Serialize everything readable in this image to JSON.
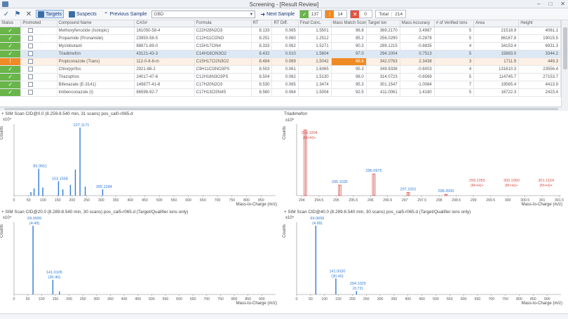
{
  "window": {
    "title": "Screening - [Result Review]"
  },
  "toolbar": {
    "targets_label": "Targets",
    "suspects_label": "Suspects",
    "prev_label": "Previous Sample",
    "sample_value": "GBD",
    "next_label": "Next Sample",
    "count_ok": "137",
    "count_warn": "14",
    "count_err": "0",
    "total_label": "Total",
    "total_value": "214"
  },
  "table": {
    "headers": [
      "Status",
      "Promoted",
      "Compound Name",
      "CAS#",
      "Formula",
      "RT",
      "RT Diff.",
      "Final Conc.",
      "Mass Match Score",
      "Target Ion",
      "Mass Accuracy",
      "# of Verified Ions",
      "Area",
      "Height"
    ],
    "rows": [
      {
        "status": "ok",
        "name": "Methoxyfenozide (Isotopic)",
        "cas": "161050-58-4",
        "formula": "C22H28N2O3",
        "rt": "8.133",
        "rtd": "0.065",
        "conc": "1.5501",
        "mms": "96.8",
        "ion": "369.2170",
        "acc": "3.4987",
        "vi": "5",
        "area": "21518.9",
        "height": "4061.1"
      },
      {
        "status": "ok",
        "name": "Propamide (Pronamide)",
        "cas": "23950-58-5",
        "formula": "C12H11Cl2NO",
        "rt": "8.251",
        "rtd": "0.060",
        "conc": "1.2512",
        "mms": "85.2",
        "ion": "256.0290",
        "acc": "-0.2878",
        "vi": "5",
        "area": "86167.8",
        "height": "19015.5"
      },
      {
        "status": "ok",
        "name": "Myclobutanil",
        "cas": "88671-89-0",
        "formula": "C15H17ClN4",
        "rt": "8.333",
        "rtd": "0.062",
        "conc": "1.5271",
        "mms": "90.3",
        "ion": "289.1215",
        "acc": "-0.8835",
        "vi": "4",
        "area": "34153.4",
        "height": "6931.3"
      },
      {
        "status": "ok",
        "name": "Triadimefon",
        "cas": "43121-43-3",
        "formula": "C14H16ClN3O2",
        "rt": "8.432",
        "rtd": "0.010",
        "conc": "1.5604",
        "mms": "97.0",
        "ion": "294.1004",
        "acc": "0.7513",
        "vi": "5",
        "area": "15883.0",
        "height": "3344.2",
        "selected": true
      },
      {
        "status": "warn",
        "name": "Propiconazole (Trans)",
        "cas": "112-0-8-8-m",
        "formula": "C15H17Cl2N3O2",
        "rt": "8.484",
        "rtd": "0.069",
        "conc": "1.5042",
        "mms": "66.6",
        "ion": "342.0763",
        "acc": "2.3438",
        "vi": "3",
        "area": "1711.9",
        "height": "449.3",
        "highlight": true
      },
      {
        "status": "ok",
        "name": "Chlorpyrifos",
        "cas": "2921-88-2",
        "formula": "C9H11Cl3NO3PS",
        "rt": "8.503",
        "rtd": "0.061",
        "conc": "1.6065",
        "mms": "95.3",
        "ion": "349.9338",
        "acc": "-0.6003",
        "vi": "4",
        "area": "131610.3",
        "height": "23556.4"
      },
      {
        "status": "ok",
        "name": "Triazophos",
        "cas": "24017-47-8",
        "formula": "C12H16N3O3PS",
        "rt": "8.504",
        "rtd": "0.062",
        "conc": "1.5130",
        "mms": "98.0",
        "ion": "314.0723",
        "acc": "-0.6569",
        "vi": "5",
        "area": "114745.7",
        "height": "27153.7"
      },
      {
        "status": "ok",
        "name": "Bifenazate (E-3141)",
        "cas": "149877-41-8",
        "formula": "C17H20N2O3",
        "rt": "8.530",
        "rtd": "0.065",
        "conc": "1.3474",
        "mms": "95.3",
        "ion": "301.1547",
        "acc": "-1.0084",
        "vi": "7",
        "area": "19565.4",
        "height": "4413.9"
      },
      {
        "status": "ok",
        "name": "Imibenconazole (I)",
        "cas": "86598-92-7",
        "formula": "C17H13Cl3N4S",
        "rt": "8.560",
        "rtd": "0.064",
        "conc": "1.5004",
        "mms": "92.5",
        "ion": "411.0061",
        "acc": "1.4180",
        "vi": "5",
        "area": "16722.3",
        "height": "2423.4"
      }
    ]
  },
  "panels": {
    "tl": {
      "title": "+ SIM Scan CID@0.0 (8.259-8.540 min, 31 scans) pos_cal0-r065.d",
      "exp": "x10⁴",
      "counts": "Counts",
      "xaxis": "Mass-to-Charge (m/z)"
    },
    "tr": {
      "title": "Triadimefon",
      "exp": "x10⁰",
      "counts": "Counts",
      "xaxis": "Mass-to-Charge (m/z)"
    },
    "bl": {
      "title": "+ SIM Scan CID@20.0 (8.289-8.540 min, 30 scans) pos_cal5-r065.d (Target/Qualifier ions only)",
      "exp": "x10⁴",
      "counts": "Counts",
      "xaxis": "Mass-to-Charge (m/z)"
    },
    "br": {
      "title": "+ SIM Scan CID@40.0 (8.289-8.540 min, 30 scans) pos_cal5-r065.d (Target/Qualifier ions only)",
      "exp": "x10⁴",
      "counts": "Counts",
      "xaxis": "Mass-to-Charge (m/z)"
    }
  },
  "chart_data": [
    {
      "type": "bar",
      "title": "+ SIM Scan CID@0.0 (8.259-8.540 min, 31 scans) pos_cal0-r065.d",
      "xlabel": "Mass-to-Charge (m/z)",
      "ylabel": "Counts",
      "xlim": [
        0,
        900
      ],
      "x_ticks": [
        0,
        50,
        100,
        150,
        200,
        250,
        300,
        350,
        400,
        450,
        500,
        550,
        600,
        650,
        700,
        750,
        800,
        850
      ],
      "peaks": [
        {
          "x": 58,
          "y": 0.4
        },
        {
          "x": 69,
          "y": 0.8
        },
        {
          "x": 85,
          "y": 3.0,
          "label": "85.0651"
        },
        {
          "x": 99,
          "y": 0.9
        },
        {
          "x": 153,
          "y": 1.6,
          "label": "153.1558"
        },
        {
          "x": 168,
          "y": 0.7
        },
        {
          "x": 194,
          "y": 1.2
        },
        {
          "x": 211,
          "y": 2.9
        },
        {
          "x": 227,
          "y": 7.6,
          "label": "227.1171"
        },
        {
          "x": 245,
          "y": 1.0
        },
        {
          "x": 305,
          "y": 0.7,
          "label": "305.1284"
        }
      ]
    },
    {
      "type": "bar",
      "title": "Triadimefon",
      "xlabel": "Mass-to-Charge (m/z)",
      "ylabel": "Counts",
      "x_ticks": [
        "294",
        "294.5",
        "295",
        "295.5",
        "296",
        "296.5",
        "297",
        "297.5",
        "298",
        "298.5",
        "299",
        "299.5",
        "300",
        "300.5",
        "301",
        "301.5"
      ],
      "peaks": [
        {
          "x": 294.1004,
          "y": 1.0,
          "label": "294.1004",
          "sub": "(M+H)+",
          "color": "#d9534f"
        },
        {
          "x": 295.1035,
          "y": 0.16,
          "label": "295.1035",
          "color": "#d9534f"
        },
        {
          "x": 296.0975,
          "y": 0.33,
          "label": "296.0975",
          "color": "#d9534f"
        },
        {
          "x": 297.1001,
          "y": 0.05,
          "label": "297.1001",
          "color": "#d9534f"
        },
        {
          "x": 298.2,
          "y": 0.02,
          "label": "298.2000",
          "color": "#d9534f"
        }
      ],
      "annotations": [
        {
          "label": "299.1055",
          "sub": "(M+H)+"
        },
        {
          "label": "300.1060",
          "sub": "(M+H)+"
        },
        {
          "label": "301.1164",
          "sub": "(M+H)+"
        }
      ]
    },
    {
      "type": "bar",
      "title": "+ SIM Scan CID@20.0 (8.289-8.540 min, 30 scans) pos_cal5-r065.d (Target/Qualifier ions only)",
      "xlabel": "Mass-to-Charge (m/z)",
      "ylabel": "Counts",
      "xlim": [
        0,
        950
      ],
      "x_ticks": [
        0,
        50,
        100,
        150,
        200,
        250,
        300,
        350,
        400,
        450,
        500,
        550,
        600,
        650,
        700,
        750,
        800,
        850,
        900
      ],
      "peaks": [
        {
          "x": 69,
          "y": 8.0,
          "label": "69.0699",
          "sub": "(4.49)"
        },
        {
          "x": 141,
          "y": 1.7,
          "label": "141.0105",
          "sub": "(30.40)"
        },
        {
          "x": 165,
          "y": 0.35
        }
      ]
    },
    {
      "type": "bar",
      "title": "+ SIM Scan CID@40.0 (8.289-8.540 min, 30 scans) pos_cal5-r065.d (Target/Qualifier ions only)",
      "xlabel": "Mass-to-Charge (m/z)",
      "ylabel": "Counts",
      "xlim": [
        0,
        950
      ],
      "x_ticks": [
        0,
        50,
        100,
        150,
        200,
        250,
        300,
        350,
        400,
        450,
        500,
        550,
        600,
        650,
        700,
        750,
        800,
        850,
        900
      ],
      "peaks": [
        {
          "x": 69,
          "y": 8.2,
          "label": "69.0699",
          "sub": "(4.99)"
        },
        {
          "x": 141,
          "y": 1.9,
          "label": "141.0030",
          "sub": "(30.40)"
        },
        {
          "x": 215,
          "y": 0.4,
          "label": "294.1025",
          "sub": "(0.72)"
        }
      ]
    }
  ],
  "colors": {
    "ok": "#69b54a",
    "warn": "#f08a24",
    "peak": "#2f7bd6",
    "peak_red": "#d9534f",
    "selected_row": "#dde8f5"
  }
}
